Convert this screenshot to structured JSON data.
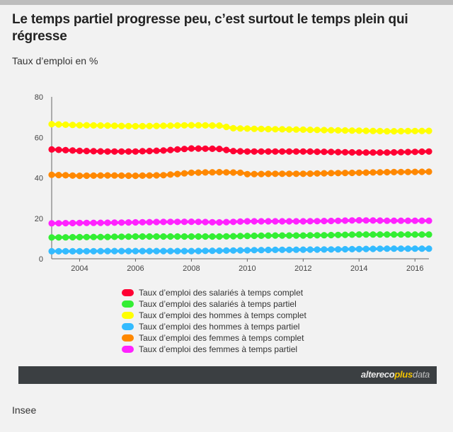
{
  "title": "Le temps partiel progresse peu, c’est surtout le temps plein qui régresse",
  "unit_label": "Taux d’emploi en %",
  "source": "Insee",
  "brand": {
    "part1": "altereco",
    "part2": "plus",
    "part3": "data"
  },
  "chart_data": {
    "type": "line",
    "title": "Le temps partiel progresse peu, c’est surtout le temps plein qui régresse",
    "ylabel": "Taux d’emploi en %",
    "xlim": [
      2003,
      2016.5
    ],
    "ylim": [
      0,
      80
    ],
    "y_ticks": [
      0,
      20,
      40,
      60,
      80
    ],
    "x_ticks": [
      2004,
      2006,
      2008,
      2010,
      2012,
      2014,
      2016
    ],
    "grid": false,
    "legend_position": "bottom",
    "series": [
      {
        "name": "Taux d’emploi des salariés à temps complet",
        "color": "#ff0033",
        "points": [
          [
            2003,
            54
          ],
          [
            2004,
            53.3
          ],
          [
            2005,
            53
          ],
          [
            2006,
            53
          ],
          [
            2007,
            53.5
          ],
          [
            2008,
            54.5
          ],
          [
            2009,
            54.3
          ],
          [
            2009.5,
            53.2
          ],
          [
            2010,
            53
          ],
          [
            2011,
            53
          ],
          [
            2012,
            53
          ],
          [
            2013,
            52.8
          ],
          [
            2014,
            52.5
          ],
          [
            2015,
            52.5
          ],
          [
            2016.5,
            53
          ]
        ]
      },
      {
        "name": "Taux d’emploi des salariés à temps partiel",
        "color": "#33ee33",
        "points": [
          [
            2003,
            10.5
          ],
          [
            2004,
            10.7
          ],
          [
            2005,
            10.8
          ],
          [
            2006,
            11
          ],
          [
            2007,
            11
          ],
          [
            2008,
            11
          ],
          [
            2009,
            11
          ],
          [
            2010,
            11.3
          ],
          [
            2011,
            11.5
          ],
          [
            2012,
            11.5
          ],
          [
            2013,
            11.7
          ],
          [
            2014,
            12
          ],
          [
            2015,
            12
          ],
          [
            2016.5,
            12
          ]
        ]
      },
      {
        "name": "Taux d’emploi des hommes à temps complet",
        "color": "#ffff00",
        "points": [
          [
            2003,
            66.5
          ],
          [
            2004,
            66
          ],
          [
            2005,
            65.8
          ],
          [
            2006,
            65.5
          ],
          [
            2007,
            65.7
          ],
          [
            2008,
            66
          ],
          [
            2009,
            65.8
          ],
          [
            2009.5,
            64.5
          ],
          [
            2010,
            64.3
          ],
          [
            2011,
            64
          ],
          [
            2012,
            63.8
          ],
          [
            2013,
            63.5
          ],
          [
            2014,
            63.3
          ],
          [
            2015,
            63
          ],
          [
            2016.5,
            63.2
          ]
        ]
      },
      {
        "name": "Taux d’emploi des hommes à temps partiel",
        "color": "#33bbff",
        "points": [
          [
            2003,
            3.7
          ],
          [
            2004,
            3.7
          ],
          [
            2005,
            3.8
          ],
          [
            2006,
            3.8
          ],
          [
            2007,
            3.8
          ],
          [
            2008,
            3.8
          ],
          [
            2009,
            4
          ],
          [
            2010,
            4.2
          ],
          [
            2011,
            4.4
          ],
          [
            2012,
            4.5
          ],
          [
            2013,
            4.6
          ],
          [
            2014,
            4.8
          ],
          [
            2015,
            5
          ],
          [
            2016.5,
            5
          ]
        ]
      },
      {
        "name": "Taux d’emploi des femmes à temps complet",
        "color": "#ff8800",
        "points": [
          [
            2003,
            41.5
          ],
          [
            2004,
            41
          ],
          [
            2005,
            41.2
          ],
          [
            2006,
            41
          ],
          [
            2007,
            41.3
          ],
          [
            2008,
            42.5
          ],
          [
            2009,
            42.8
          ],
          [
            2009.8,
            42.5
          ],
          [
            2010,
            41.8
          ],
          [
            2011,
            42
          ],
          [
            2012,
            42
          ],
          [
            2013,
            42.3
          ],
          [
            2014,
            42.5
          ],
          [
            2015,
            42.8
          ],
          [
            2016.5,
            43
          ]
        ]
      },
      {
        "name": "Taux d’emploi des femmes à temps partiel",
        "color": "#ff22ff",
        "points": [
          [
            2003,
            17.5
          ],
          [
            2004,
            17.7
          ],
          [
            2005,
            17.8
          ],
          [
            2006,
            18
          ],
          [
            2007,
            18.2
          ],
          [
            2008,
            18.3
          ],
          [
            2009,
            18
          ],
          [
            2010,
            18.5
          ],
          [
            2011,
            18.5
          ],
          [
            2012,
            18.5
          ],
          [
            2013,
            18.7
          ],
          [
            2014,
            19
          ],
          [
            2015,
            18.8
          ],
          [
            2016.5,
            18.8
          ]
        ]
      }
    ]
  }
}
